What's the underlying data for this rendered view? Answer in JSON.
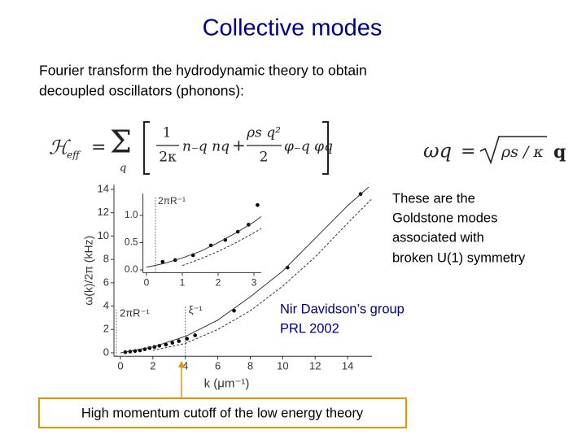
{
  "title": "Collective modes",
  "intro": [
    "Fourier transform the hydrodynamic theory to obtain",
    "decoupled oscillators (phonons):"
  ],
  "equations": {
    "hamiltonian": {
      "symbol": "ℋ",
      "sub": "eff",
      "equals": "=",
      "sum": "Σ",
      "index": "q",
      "frac1_num": "1",
      "frac1_den": "2κ",
      "term1": "n₋q nq",
      "plus": "+",
      "frac2_num": "ρs q²",
      "frac2_den": "2",
      "term2": "φ₋q φq"
    },
    "dispersion": {
      "lhs": "ωq",
      "equals": "=",
      "radicand": "ρs / κ",
      "factor": "q"
    }
  },
  "side_note": [
    "These are the",
    "Goldstone modes",
    "associated with",
    "broken U(1) symmetry"
  ],
  "credit": [
    "Nir Davidson’s group",
    "PRL 2002"
  ],
  "callout": "High momentum cutoff of the low energy theory",
  "chart_data": [
    {
      "type": "scatter",
      "xlabel": "k (μm⁻¹)",
      "ylabel": "ω(k)/2π (kHz)",
      "xlim": [
        -0.4,
        15.5
      ],
      "ylim": [
        -0.3,
        14.4
      ],
      "xticks": [
        0,
        2,
        4,
        6,
        8,
        10,
        12,
        14
      ],
      "yticks": [
        0,
        2,
        4,
        6,
        8,
        10,
        12,
        14
      ],
      "vlines": [
        {
          "value": -0.25,
          "label": "2πR⁻¹"
        },
        {
          "value": 4,
          "label": "ξ⁻¹"
        }
      ],
      "series": [
        {
          "style": "points",
          "color": "#000000",
          "x": [
            0.3,
            0.6,
            0.9,
            1.2,
            1.5,
            1.8,
            2.1,
            2.4,
            2.8,
            3.2,
            3.6,
            4.1,
            4.6,
            7,
            10.3,
            14.8
          ],
          "values": [
            0.05,
            0.1,
            0.15,
            0.2,
            0.3,
            0.4,
            0.5,
            0.6,
            0.7,
            0.85,
            1.0,
            1.2,
            1.5,
            3.6,
            7.3,
            13.6
          ]
        },
        {
          "style": "solid",
          "color": "#333333",
          "x": [
            0,
            2,
            4,
            6,
            8,
            10,
            12,
            14,
            15.3
          ],
          "values": [
            0,
            0.5,
            1.4,
            2.8,
            4.8,
            7.0,
            9.8,
            12.6,
            14.2
          ]
        },
        {
          "style": "dashed",
          "color": "#333333",
          "x": [
            2,
            4,
            6,
            8,
            10,
            12,
            14,
            15.5
          ],
          "values": [
            0.2,
            0.8,
            2.0,
            3.6,
            5.7,
            8.2,
            11.1,
            13.2
          ]
        }
      ]
    },
    {
      "type": "scatter",
      "xlim": [
        -0.1,
        3.2
      ],
      "ylim": [
        -0.05,
        1.4
      ],
      "xticks": [
        0,
        1,
        2,
        3
      ],
      "yticks": [
        {
          "value": 0,
          "label": "0.0"
        },
        {
          "value": 0.5,
          "label": "0.5"
        },
        {
          "value": 1,
          "label": "1.0"
        }
      ],
      "vlines": [
        {
          "value": 0.25,
          "label": "2πR⁻¹"
        }
      ],
      "series": [
        {
          "style": "points",
          "color": "#000000",
          "x": [
            0.45,
            0.8,
            1.3,
            1.8,
            2.2,
            2.55,
            2.85,
            3.1
          ],
          "values": [
            0.15,
            0.18,
            0.27,
            0.45,
            0.55,
            0.7,
            0.83,
            1.19
          ]
        },
        {
          "style": "solid",
          "color": "#333333",
          "x": [
            0,
            0.5,
            1,
            1.5,
            2,
            2.5,
            3,
            3.2
          ],
          "values": [
            0.05,
            0.12,
            0.22,
            0.34,
            0.5,
            0.68,
            0.88,
            0.98
          ]
        },
        {
          "style": "dashed",
          "color": "#333333",
          "x": [
            1,
            1.5,
            2,
            2.5,
            3,
            3.2
          ],
          "values": [
            0.08,
            0.2,
            0.34,
            0.5,
            0.68,
            0.76
          ]
        }
      ]
    }
  ]
}
